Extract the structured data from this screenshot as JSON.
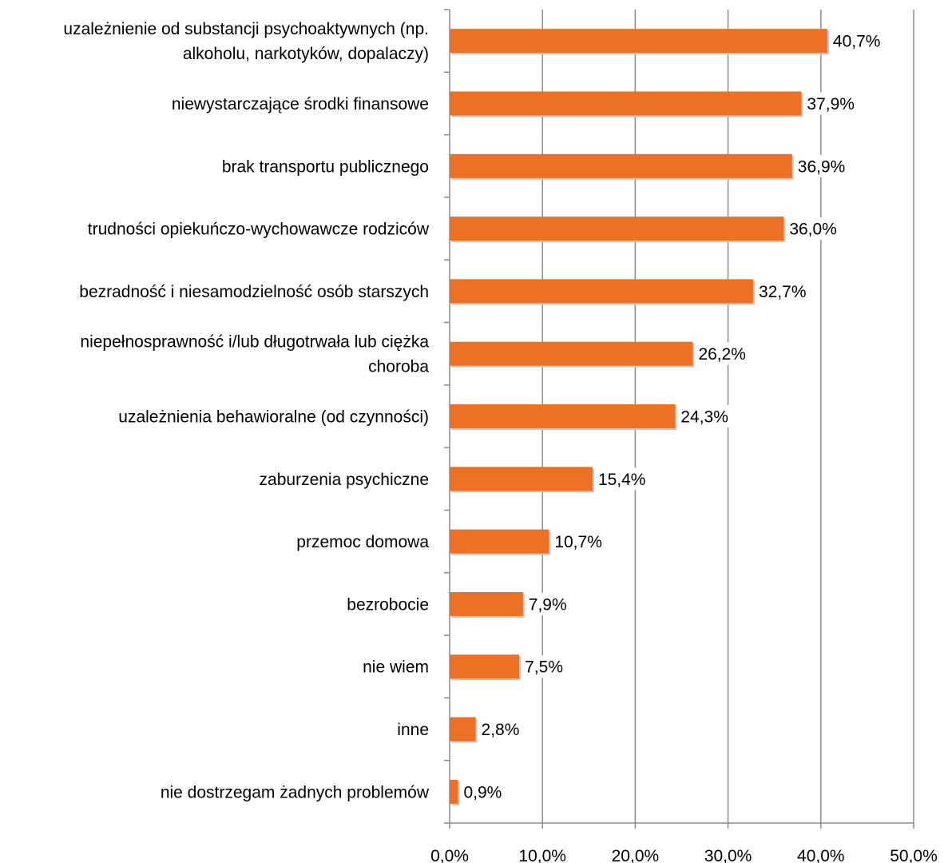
{
  "chart_data": {
    "type": "bar",
    "orientation": "horizontal",
    "categories": [
      [
        "uzależnienie od substancji psychoaktywnych (np.",
        "alkoholu, narkotyków, dopalaczy)"
      ],
      [
        "niewystarczające środki finansowe"
      ],
      [
        "brak transportu publicznego"
      ],
      [
        "trudności opiekuńczo-wychowawcze rodziców"
      ],
      [
        "bezradność i niesamodzielność osób starszych"
      ],
      [
        "niepełnosprawność i/lub długotrwała lub ciężka",
        "choroba"
      ],
      [
        "uzależnienia behawioralne (od czynności)"
      ],
      [
        "zaburzenia psychiczne"
      ],
      [
        "przemoc domowa"
      ],
      [
        "bezrobocie"
      ],
      [
        "nie wiem"
      ],
      [
        "inne"
      ],
      [
        "nie dostrzegam żadnych problemów"
      ]
    ],
    "values": [
      40.7,
      37.9,
      36.9,
      36.0,
      32.7,
      26.2,
      24.3,
      15.4,
      10.7,
      7.9,
      7.5,
      2.8,
      0.9
    ],
    "value_labels": [
      "40,7%",
      "37,9%",
      "36,9%",
      "36,0%",
      "32,7%",
      "26,2%",
      "24,3%",
      "15,4%",
      "10,7%",
      "7,9%",
      "7,5%",
      "2,8%",
      "0,9%"
    ],
    "x_ticks": [
      0,
      10,
      20,
      30,
      40,
      50
    ],
    "x_tick_labels": [
      "0,0%",
      "10,0%",
      "20,0%",
      "30,0%",
      "40,0%",
      "50,0%"
    ],
    "xlim": [
      0,
      50
    ],
    "grid": "vertical",
    "bar_color": "#ED7125",
    "title": "",
    "xlabel": "",
    "ylabel": ""
  }
}
